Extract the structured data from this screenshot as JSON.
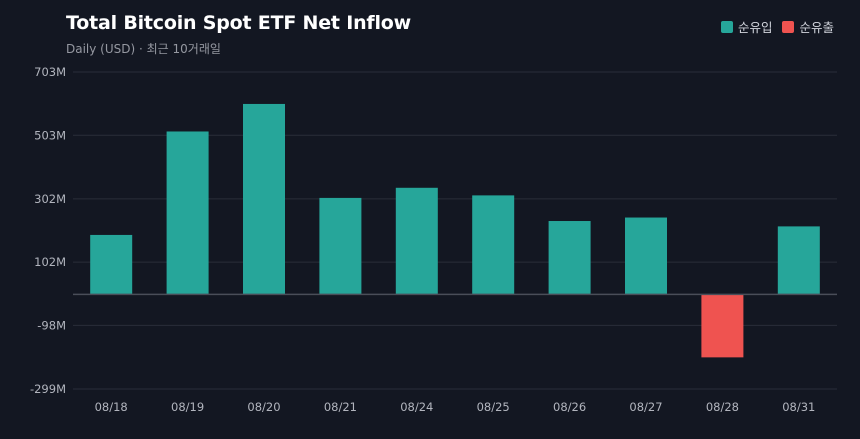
{
  "header": {
    "title": "Total Bitcoin Spot ETF Net Inflow",
    "subtitle": "Daily (USD) · 최근 10거래일"
  },
  "legend": {
    "items": [
      {
        "label": "순유입",
        "color": "#26a69a"
      },
      {
        "label": "순유출",
        "color": "#ef5350"
      }
    ]
  },
  "colors": {
    "background": "#131722",
    "grid": "#2a2e39",
    "zero_line": "#4a4e59",
    "tick_text": "#b2b5be",
    "positive": "#26a69a",
    "negative": "#ef5350"
  },
  "chart_data": {
    "type": "bar",
    "title": "Total Bitcoin Spot ETF Net Inflow",
    "subtitle": "Daily (USD) · 최근 10거래일",
    "categories": [
      "08/18",
      "08/19",
      "08/20",
      "08/21",
      "08/24",
      "08/25",
      "08/26",
      "08/27",
      "08/28",
      "08/31"
    ],
    "values": [
      188,
      515,
      602,
      305,
      337,
      313,
      232,
      243,
      -199,
      215
    ],
    "y_ticks": [
      {
        "value": 703,
        "label": "703M"
      },
      {
        "value": 503,
        "label": "503M"
      },
      {
        "value": 302,
        "label": "302M"
      },
      {
        "value": 102,
        "label": "102M"
      },
      {
        "value": -98,
        "label": "-98M"
      },
      {
        "value": -299,
        "label": "-299M"
      }
    ],
    "ylim": [
      -299,
      703
    ],
    "grid": true,
    "legend_position": "top-right"
  }
}
